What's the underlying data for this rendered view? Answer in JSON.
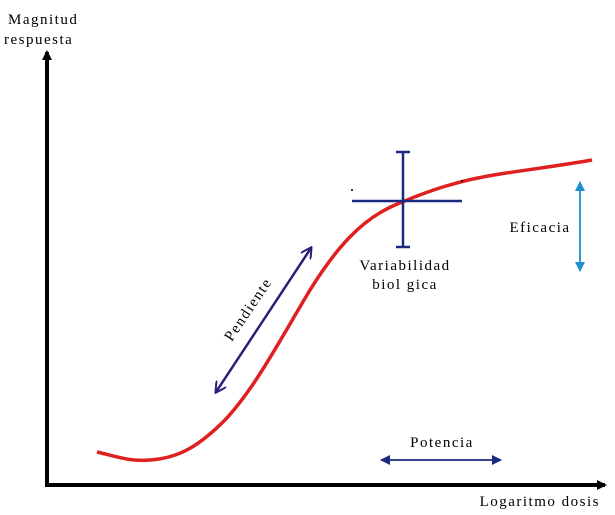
{
  "axis": {
    "y_label": [
      "Magnitud",
      "respuesta"
    ],
    "x_label": "Logaritmo dosis"
  },
  "annotations": {
    "slope": "Pendiente",
    "variability": [
      "Variabilidad",
      "biol gica"
    ],
    "efficacy": "Eficacia",
    "potency": "Potencia"
  }
}
